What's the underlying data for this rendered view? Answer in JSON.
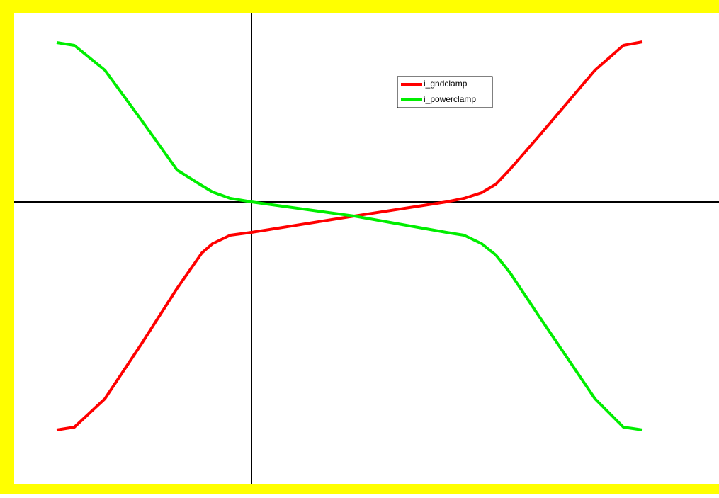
{
  "chart_data": {
    "type": "line",
    "x": [
      -2.75,
      -2.5,
      -2.07,
      -1.55,
      -1.05,
      -0.7,
      -0.55,
      -0.3,
      0,
      1.45,
      2.75,
      3.0,
      3.25,
      3.45,
      3.65,
      4.05,
      4.85,
      5.25,
      5.52
    ],
    "series": [
      {
        "name": "i_gndclamp",
        "color": "#ff0000",
        "values": [
          -3.22,
          -3.18,
          -2.78,
          -2.0,
          -1.22,
          -0.72,
          -0.59,
          -0.47,
          -0.43,
          -0.2,
          0,
          0.05,
          0.13,
          0.25,
          0.46,
          0.92,
          1.86,
          2.21,
          2.26
        ]
      },
      {
        "name": "i_powerclamp",
        "color": "#00ee00",
        "values": [
          2.25,
          2.21,
          1.86,
          1.15,
          0.45,
          0.23,
          0.14,
          0.05,
          0,
          -0.2,
          -0.43,
          -0.47,
          -0.59,
          -0.75,
          -1.0,
          -1.6,
          -2.78,
          -3.18,
          -3.22
        ]
      }
    ],
    "xlim": [
      -3.35,
      6.6
    ],
    "ylim": [
      -3.98,
      2.67
    ]
  }
}
